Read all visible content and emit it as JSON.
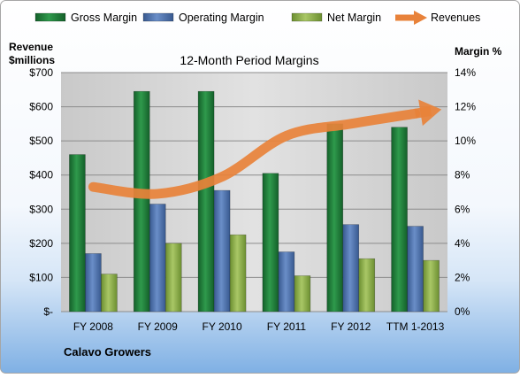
{
  "chart_data": {
    "type": "bar",
    "title": "12-Month Period Margins",
    "company": "Calavo Growers",
    "left_axis_label_line1": "Revenue",
    "left_axis_label_line2": "$millions",
    "right_axis_label": "Margin %",
    "categories": [
      "FY 2008",
      "FY 2009",
      "FY 2010",
      "FY 2011",
      "FY 2012",
      "TTM 1-2013"
    ],
    "left_ticks": [
      "$-",
      "$100",
      "$200",
      "$300",
      "$400",
      "$500",
      "$600",
      "$700"
    ],
    "right_ticks": [
      "0%",
      "2%",
      "4%",
      "6%",
      "8%",
      "10%",
      "12%",
      "14%"
    ],
    "ylim_margin": [
      0,
      14
    ],
    "ylim_revenue": [
      0,
      700
    ],
    "series": [
      {
        "name": "Gross Margin",
        "axis": "right",
        "color": "#1f7a3a",
        "values": [
          9.2,
          12.9,
          12.9,
          8.1,
          11.0,
          10.8
        ]
      },
      {
        "name": "Operating Margin",
        "axis": "right",
        "color": "#4a6fad",
        "values": [
          3.4,
          6.3,
          7.1,
          3.5,
          5.1,
          5.0
        ]
      },
      {
        "name": "Net Margin",
        "axis": "right",
        "color": "#8db04a",
        "values": [
          2.2,
          4.0,
          4.5,
          2.1,
          3.1,
          3.0
        ]
      },
      {
        "name": "Revenues",
        "axis": "left",
        "type": "line",
        "color": "#e8823a",
        "values": [
          365,
          345,
          395,
          515,
          550,
          580
        ]
      }
    ],
    "legend_position": "top",
    "grid": true
  }
}
